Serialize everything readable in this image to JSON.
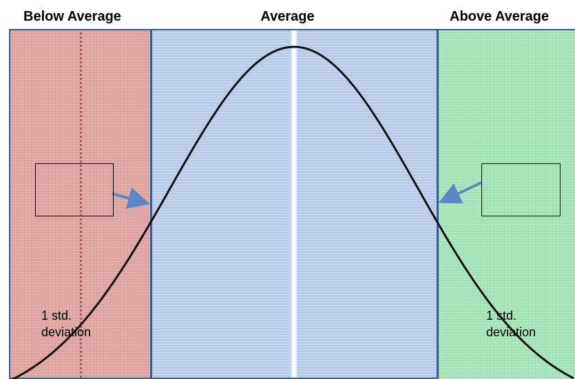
{
  "headings": {
    "below": "Below Average",
    "average": "Average",
    "above": "Above Average"
  },
  "annotations": {
    "left_line1": "1 std.",
    "left_line2": "deviation",
    "right_line1": "1 std.",
    "right_line2": "deviation"
  },
  "colors": {
    "below_band": "#dca5a2",
    "average_band": "#b8c9e6",
    "above_band": "#a6e2b8",
    "border": "#3b5d8a",
    "curve": "#111111",
    "arrow": "#5b87c4"
  }
}
